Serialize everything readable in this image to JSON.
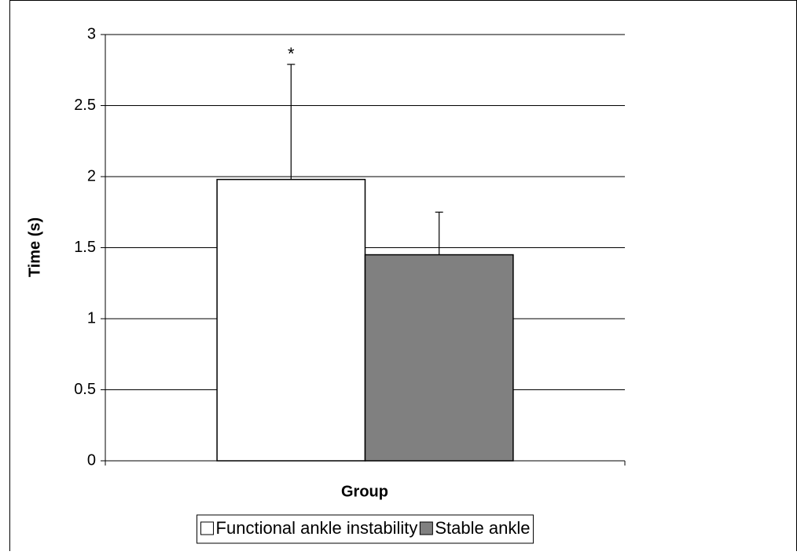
{
  "chart_data": {
    "type": "bar",
    "y_label": "Time (s)",
    "x_label": "Group",
    "categories": [
      null
    ],
    "series": [
      {
        "name": "Functional ankle instability",
        "color": "#ffffff",
        "values": [
          1.98
        ],
        "errors": [
          0.81
        ],
        "annotation": "*"
      },
      {
        "name": "Stable ankle",
        "color": "#808080",
        "values": [
          1.45
        ],
        "errors": [
          0.3
        ]
      }
    ],
    "ylim": [
      0,
      3
    ],
    "yticks": [
      0,
      0.5,
      1,
      1.5,
      2,
      2.5,
      3
    ],
    "grid": true,
    "legend": "bottom"
  }
}
